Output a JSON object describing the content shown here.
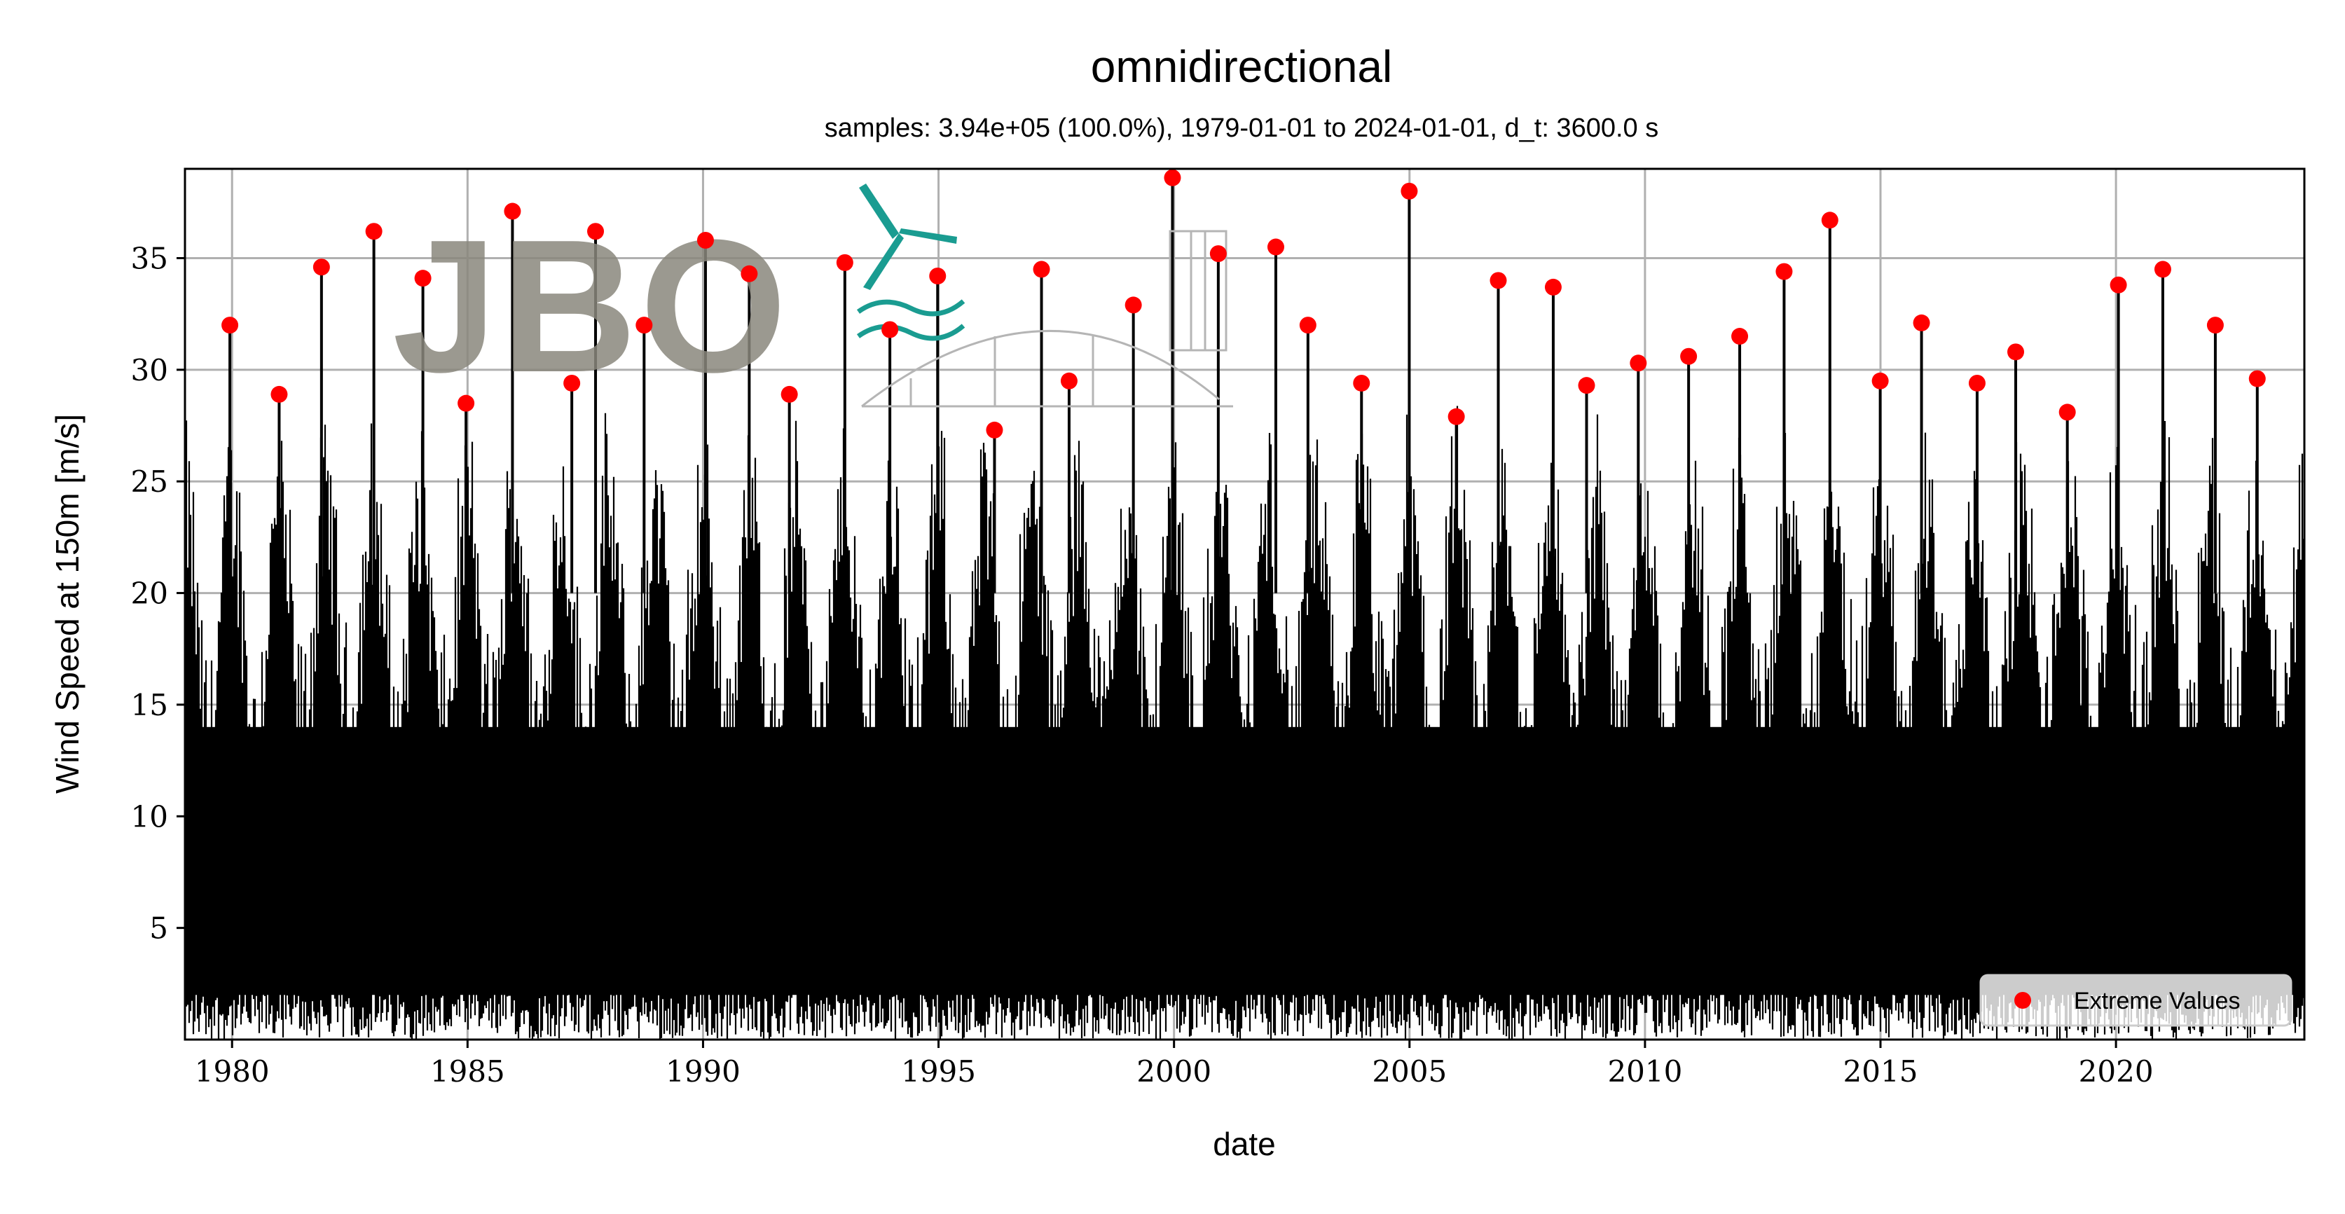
{
  "chart_data": {
    "type": "line",
    "title": "omnidirectional",
    "subtitle": "samples: 3.94e+05 (100.0%), 1979-01-01 to 2024-01-01, d_t: 3600.0 s",
    "xlabel": "date",
    "ylabel": "Wind Speed at 150m [m/s]",
    "xlim": [
      "1979-01-01",
      "2024-01-01"
    ],
    "ylim": [
      0,
      39
    ],
    "x_ticks": [
      1980,
      1985,
      1990,
      1995,
      2000,
      2005,
      2010,
      2015,
      2020
    ],
    "y_ticks": [
      5,
      10,
      15,
      20,
      25,
      30,
      35
    ],
    "x_tick_labels": [
      "1980",
      "1985",
      "1990",
      "1995",
      "2000",
      "2005",
      "2010",
      "2015",
      "2020"
    ],
    "y_tick_labels": [
      "5",
      "10",
      "15",
      "20",
      "25",
      "30",
      "35"
    ],
    "grid": true,
    "legend_position": "bottom-right",
    "series": [
      {
        "name": "Extreme Values",
        "type": "scatter",
        "color": "#ff0000",
        "x": [
          "1979-12-15",
          "1981-01-01",
          "1981-11-25",
          "1983-01-05",
          "1984-01-20",
          "1984-12-20",
          "1985-12-15",
          "1987-03-20",
          "1987-09-20",
          "1988-10-01",
          "1990-01-20",
          "1990-12-25",
          "1991-11-01",
          "1993-01-05",
          "1993-12-20",
          "1994-12-25",
          "1996-03-10",
          "1997-03-10",
          "1997-10-10",
          "1999-02-20",
          "1999-12-20",
          "2000-12-10",
          "2002-03-01",
          "2002-11-05",
          "2003-12-25",
          "2004-12-30",
          "2005-12-30",
          "2006-11-20",
          "2008-01-20",
          "2008-10-05",
          "2009-11-10",
          "2010-12-05",
          "2012-01-05",
          "2012-12-15",
          "2013-12-05",
          "2014-12-30",
          "2015-11-15",
          "2017-01-20",
          "2017-11-15",
          "2018-12-20",
          "2020-01-20",
          "2020-12-30",
          "2022-02-10",
          "2023-01-01"
        ],
        "y": [
          32.0,
          28.9,
          34.6,
          36.2,
          34.1,
          28.5,
          37.1,
          29.4,
          36.2,
          32.0,
          35.8,
          34.3,
          28.9,
          34.8,
          31.8,
          34.2,
          27.3,
          34.5,
          29.5,
          32.9,
          38.6,
          35.2,
          35.5,
          32.0,
          29.4,
          38.0,
          27.9,
          34.0,
          33.7,
          29.3,
          30.3,
          30.6,
          31.5,
          34.4,
          36.7,
          29.5,
          32.1,
          29.4,
          30.8,
          28.1,
          33.8,
          34.5,
          32.0,
          29.6
        ]
      },
      {
        "name": "",
        "type": "line",
        "color": "#000000",
        "note_visible": "dense hourly time series 0 to ~28 m/s"
      }
    ]
  },
  "watermark": {
    "text": "JBO",
    "text_color": "#8a877c",
    "accent_color": "#1a9c91"
  }
}
